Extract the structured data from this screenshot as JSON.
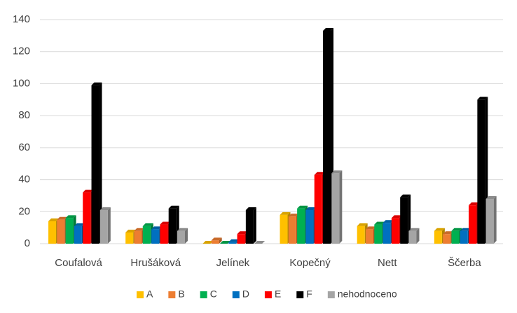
{
  "chart_data": {
    "type": "bar",
    "categories": [
      "Coufalová",
      "Hrušáková",
      "Jelínek",
      "Kopečný",
      "Nett",
      "Ščerba"
    ],
    "series": [
      {
        "name": "A",
        "color": "#ffc000",
        "values": [
          14,
          7,
          0,
          18,
          11,
          8
        ]
      },
      {
        "name": "B",
        "color": "#ed7d31",
        "values": [
          15,
          8,
          2,
          17,
          9,
          6
        ]
      },
      {
        "name": "C",
        "color": "#00b050",
        "values": [
          16,
          11,
          0,
          22,
          12,
          8
        ]
      },
      {
        "name": "D",
        "color": "#0070c0",
        "values": [
          11,
          9,
          1,
          21,
          13,
          8
        ]
      },
      {
        "name": "E",
        "color": "#ff0000",
        "values": [
          32,
          12,
          6,
          43,
          16,
          24
        ]
      },
      {
        "name": "F",
        "color": "#000000",
        "values": [
          99,
          22,
          21,
          133,
          29,
          90
        ]
      },
      {
        "name": "nehodnoceno",
        "color": "#a5a5a5",
        "values": [
          21,
          8,
          0,
          44,
          8,
          28
        ]
      }
    ],
    "ylim": [
      0,
      140
    ],
    "yticks": [
      0,
      20,
      40,
      60,
      80,
      100,
      120,
      140
    ],
    "grid": true,
    "legend": "bottom"
  }
}
